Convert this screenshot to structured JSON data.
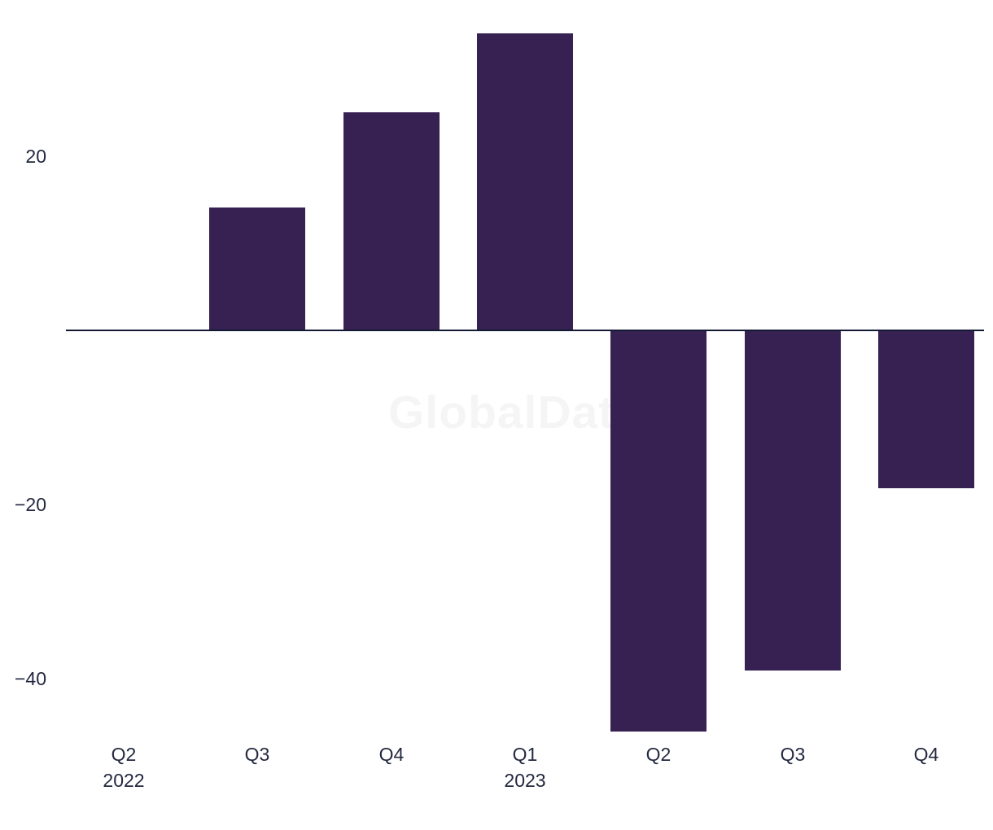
{
  "chart_data": {
    "type": "bar",
    "categories": [
      "Q2 2022",
      "Q3 2022",
      "Q4 2022",
      "Q1 2023",
      "Q2 2023",
      "Q3 2023",
      "Q4 2023"
    ],
    "values": [
      0,
      14,
      25,
      34,
      -46,
      -39,
      -18
    ],
    "x_tick_labels": [
      {
        "label": "Q2",
        "sublabel": "2022"
      },
      {
        "label": "Q3",
        "sublabel": ""
      },
      {
        "label": "Q4",
        "sublabel": ""
      },
      {
        "label": "Q1",
        "sublabel": "2023"
      },
      {
        "label": "Q2",
        "sublabel": ""
      },
      {
        "label": "Q3",
        "sublabel": ""
      },
      {
        "label": "Q4",
        "sublabel": ""
      }
    ],
    "yticks": [
      {
        "value": 20,
        "label": "20"
      },
      {
        "value": -20,
        "label": "−20"
      },
      {
        "value": -40,
        "label": "−40"
      }
    ],
    "title": "",
    "xlabel": "",
    "ylabel": "",
    "ylim": [
      -48,
      36
    ],
    "grid": false,
    "legend": null,
    "baseline_value": 0
  },
  "watermark": {
    "text": "GlobalData"
  },
  "colors": {
    "bar": "#362152",
    "axis_line": "#141a33",
    "tick_text": "#232840",
    "watermark": "#f5f5f5",
    "background": "#ffffff"
  }
}
